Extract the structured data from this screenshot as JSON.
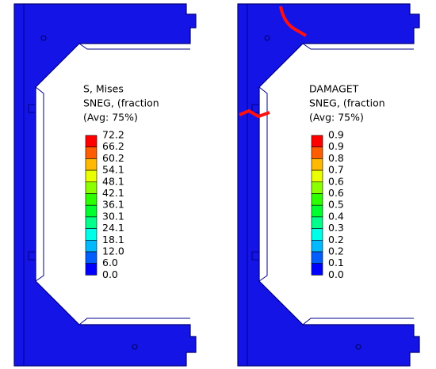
{
  "panels": [
    {
      "title_lines": [
        "S, Mises",
        "SNEG, (fraction",
        "(Avg: 75%)"
      ],
      "labels": [
        "72.2",
        "66.2",
        "60.2",
        "54.1",
        "48.1",
        "42.1",
        "36.1",
        "30.1",
        "24.1",
        "18.1",
        "12.0",
        "6.0",
        "0.0"
      ]
    },
    {
      "title_lines": [
        "DAMAGET",
        "SNEG, (fraction",
        "(Avg: 75%)"
      ],
      "labels": [
        "0.9",
        "0.9",
        "0.8",
        "0.7",
        "0.6",
        "0.6",
        "0.5",
        "0.4",
        "0.3",
        "0.2",
        "0.2",
        "0.1",
        "0.0"
      ]
    }
  ]
}
